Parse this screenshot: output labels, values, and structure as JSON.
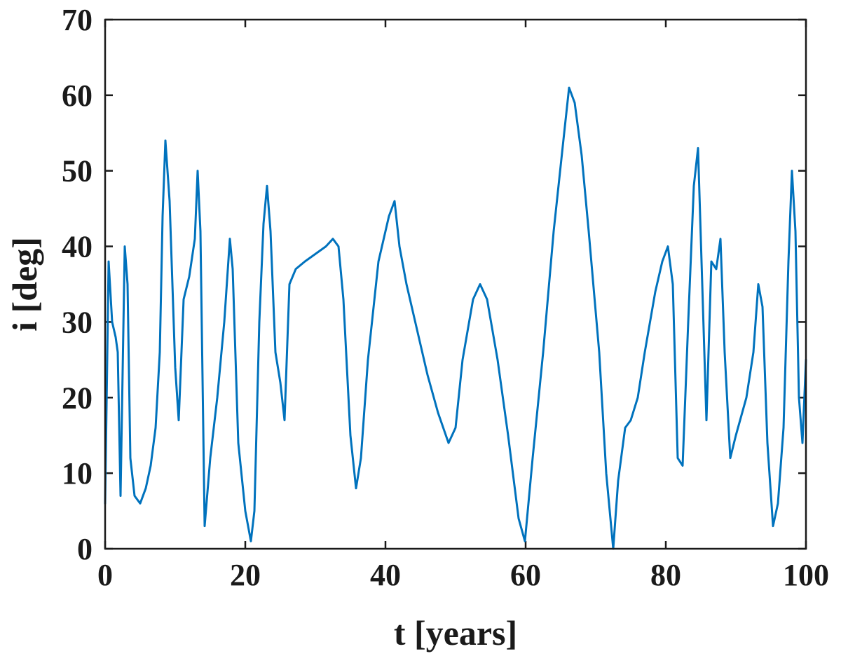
{
  "chart_data": {
    "type": "line",
    "title": "",
    "xlabel": "t [years]",
    "ylabel": "i [deg]",
    "xlim": [
      0,
      100
    ],
    "ylim": [
      0,
      70
    ],
    "xticks": [
      0,
      20,
      40,
      60,
      80,
      100
    ],
    "yticks": [
      0,
      10,
      20,
      30,
      40,
      50,
      60,
      70
    ],
    "grid": false,
    "legend": "none",
    "series": [
      {
        "color": "#0072BD",
        "x": [
          0,
          0.5,
          1.0,
          1.5,
          1.8,
          2.2,
          2.8,
          3.2,
          3.6,
          4.2,
          5.0,
          5.8,
          6.5,
          7.2,
          7.8,
          8.2,
          8.6,
          9.2,
          10.0,
          10.5,
          11.2,
          12.0,
          12.8,
          13.2,
          13.6,
          14.2,
          15.0,
          16.0,
          17.0,
          17.8,
          18.2,
          19.0,
          20.0,
          20.8,
          21.3,
          22.0,
          22.6,
          23.1,
          23.6,
          24.3,
          25.0,
          25.6,
          26.3,
          27.2,
          28.5,
          30.0,
          31.5,
          32.5,
          33.3,
          34.0,
          35.0,
          35.8,
          36.5,
          37.5,
          39.0,
          40.5,
          41.3,
          42.0,
          43.0,
          44.5,
          46.0,
          47.5,
          49.0,
          50.0,
          51.0,
          52.5,
          53.5,
          54.5,
          56.0,
          57.5,
          59.0,
          59.9,
          61.0,
          62.5,
          64.0,
          65.5,
          66.2,
          67.0,
          68.0,
          69.0,
          70.5,
          71.5,
          72.5,
          73.2,
          74.2,
          75.0,
          76.0,
          77.0,
          78.5,
          79.5,
          80.3,
          81.0,
          81.7,
          82.4,
          83.2,
          84.0,
          84.6,
          85.2,
          85.8,
          86.5,
          87.2,
          87.8,
          88.4,
          89.2,
          90.0,
          91.5,
          92.5,
          93.2,
          93.8,
          94.5,
          95.3,
          96.0,
          96.8,
          97.5,
          98.0,
          98.5,
          99.0,
          99.5,
          100.0
        ],
        "values": [
          6,
          38,
          30,
          28,
          26,
          7,
          40,
          35,
          12,
          7,
          6,
          8,
          11,
          16,
          26,
          44,
          54,
          46,
          24,
          17,
          33,
          36,
          41,
          50,
          42,
          3,
          12,
          20,
          30,
          41,
          37,
          14,
          5,
          1,
          5,
          30,
          43,
          48,
          42,
          26,
          22,
          17,
          35,
          37,
          38,
          39,
          40,
          41,
          40,
          33,
          15,
          8,
          12,
          25,
          38,
          44,
          46,
          40,
          35,
          29,
          23,
          18,
          14,
          16,
          25,
          33,
          35,
          33,
          25,
          15,
          4,
          1,
          12,
          26,
          42,
          55,
          61,
          59,
          52,
          42,
          26,
          10,
          0,
          9,
          16,
          17,
          20,
          26,
          34,
          38,
          40,
          35,
          12,
          11,
          30,
          48,
          53,
          35,
          17,
          38,
          37,
          41,
          26,
          12,
          15,
          20,
          26,
          35,
          32,
          14,
          3,
          6,
          16,
          38,
          50,
          42,
          20,
          14,
          25
        ]
      }
    ]
  }
}
